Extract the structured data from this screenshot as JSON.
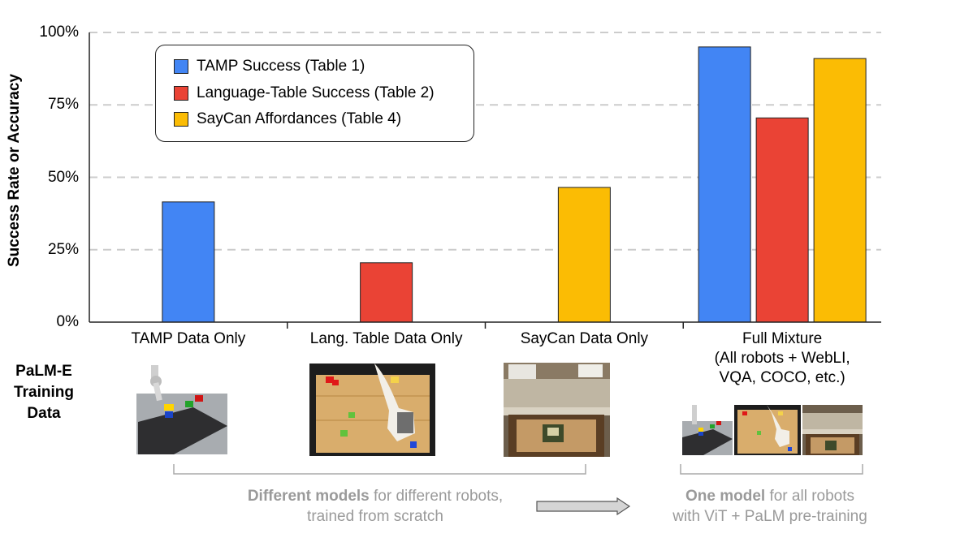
{
  "chart_data": {
    "type": "bar",
    "ylabel": "Success Rate or Accuracy",
    "ylim": [
      0,
      100
    ],
    "yticks": [
      "0%",
      "25%",
      "50%",
      "75%",
      "100%"
    ],
    "grid": true,
    "legend_position": "top-left",
    "categories": [
      "TAMP Data Only",
      "Lang. Table Data Only",
      "SayCan Data Only",
      "Full Mixture\n(All robots + WebLI,\nVQA, COCO, etc.)"
    ],
    "series": [
      {
        "name": "TAMP Success (Table 1)",
        "color": "#4285F4",
        "values": [
          41.5,
          null,
          null,
          95
        ]
      },
      {
        "name": "Language-Table Success (Table 2)",
        "color": "#EA4335",
        "values": [
          null,
          20.5,
          null,
          70.5
        ]
      },
      {
        "name": "SayCan Affordances (Table 4)",
        "color": "#FBBC04",
        "values": [
          null,
          null,
          46.5,
          91
        ]
      }
    ]
  },
  "training": {
    "label": "PaLM-E\nTraining\nData"
  },
  "captions": {
    "left_bold": "Different models",
    "left_rest": " for different robots,",
    "left_line2": "trained from scratch",
    "right_bold": "One model",
    "right_rest": " for all robots",
    "right_line2": "with ViT + PaLM pre-training"
  }
}
